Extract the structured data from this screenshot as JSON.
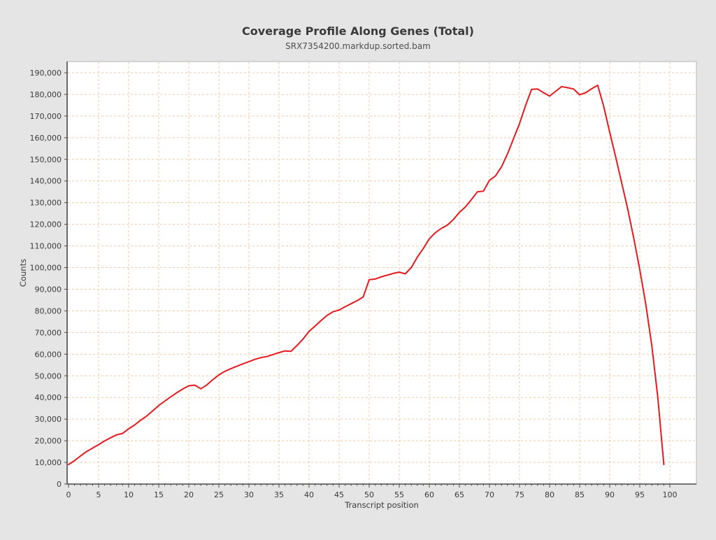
{
  "page": {
    "background_color": "#e5e5e5",
    "plot_background_color": "#ffffff"
  },
  "chart": {
    "title": "Coverage Profile Along Genes (Total)",
    "subtitle": "SRX7354200.markdup.sorted.bam",
    "xlabel": "Transcript position",
    "ylabel": "Counts"
  },
  "chart_data": {
    "type": "line",
    "title": "Coverage Profile Along Genes (Total)",
    "subtitle": "SRX7354200.markdup.sorted.bam",
    "xlabel": "Transcript position",
    "ylabel": "Counts",
    "legend_position": "none",
    "grid": true,
    "grid_color": "#f5c9a3",
    "line_color": "#e8191c",
    "axis_color": "#4a4a4a",
    "plot_border_color": "#b5b5b5",
    "xlim": [
      0,
      104.5
    ],
    "ylim": [
      0,
      195000
    ],
    "xticks": [
      0,
      5,
      10,
      15,
      20,
      25,
      30,
      35,
      40,
      45,
      50,
      55,
      60,
      65,
      70,
      75,
      80,
      85,
      90,
      95,
      100
    ],
    "yticks": [
      0,
      10000,
      20000,
      30000,
      40000,
      50000,
      60000,
      70000,
      80000,
      90000,
      100000,
      110000,
      120000,
      130000,
      140000,
      150000,
      160000,
      170000,
      180000,
      190000
    ],
    "x": [
      0,
      1,
      2,
      3,
      4,
      5,
      6,
      7,
      8,
      9,
      10,
      11,
      12,
      13,
      14,
      15,
      16,
      17,
      18,
      19,
      20,
      21,
      22,
      23,
      24,
      25,
      26,
      27,
      28,
      29,
      30,
      31,
      32,
      33,
      34,
      35,
      36,
      37,
      38,
      39,
      40,
      41,
      42,
      43,
      44,
      45,
      46,
      47,
      48,
      49,
      50,
      51,
      52,
      53,
      54,
      55,
      56,
      57,
      58,
      59,
      60,
      61,
      62,
      63,
      64,
      65,
      66,
      67,
      68,
      69,
      70,
      71,
      72,
      73,
      74,
      75,
      76,
      77,
      78,
      79,
      80,
      81,
      82,
      83,
      84,
      85,
      86,
      87,
      88,
      89,
      90,
      91,
      92,
      93,
      94,
      95,
      96,
      97,
      98,
      99
    ],
    "values": [
      9000,
      10800,
      13000,
      15000,
      16600,
      18200,
      19900,
      21400,
      22700,
      23400,
      25500,
      27300,
      29500,
      31400,
      33800,
      36300,
      38300,
      40300,
      42200,
      43900,
      45400,
      45700,
      44000,
      45800,
      48200,
      50400,
      52100,
      53300,
      54400,
      55500,
      56500,
      57600,
      58400,
      58900,
      59800,
      60700,
      61500,
      61300,
      64000,
      67000,
      70500,
      73000,
      75500,
      77900,
      79600,
      80400,
      81900,
      83300,
      84700,
      86400,
      94400,
      94700,
      95700,
      96500,
      97300,
      97900,
      97100,
      100000,
      104800,
      108800,
      113300,
      116100,
      118100,
      119600,
      122200,
      125500,
      128000,
      131400,
      135000,
      135300,
      140300,
      142300,
      146500,
      152500,
      159500,
      166500,
      174800,
      182300,
      182500,
      180800,
      179200,
      181400,
      183600,
      183100,
      182500,
      179800,
      180800,
      182600,
      184200,
      174500,
      162500,
      151000,
      139000,
      127000,
      113500,
      99000,
      83000,
      64000,
      40000,
      9000
    ]
  }
}
